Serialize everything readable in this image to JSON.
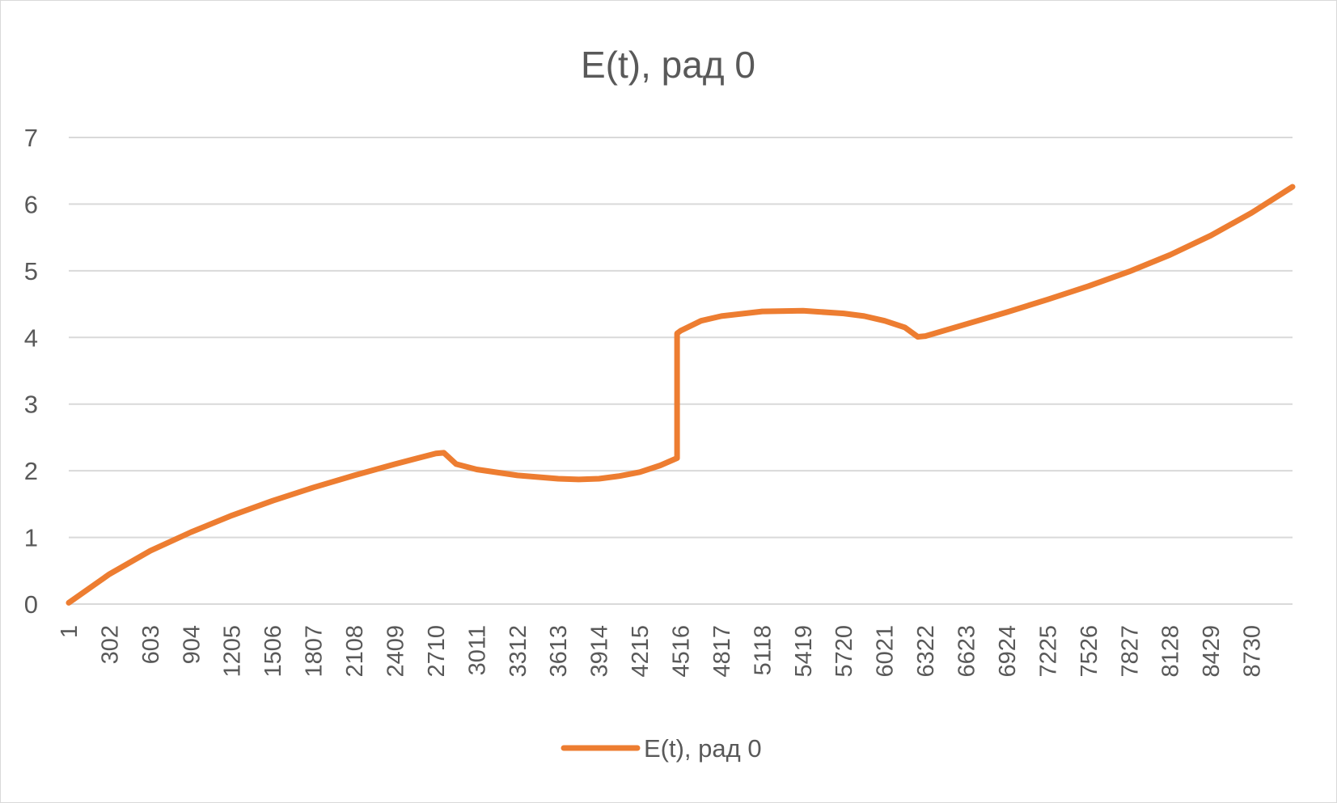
{
  "chart_data": {
    "type": "line",
    "title": "E(t), рад 0",
    "xlabel": "",
    "ylabel": "",
    "ylim": [
      0,
      7
    ],
    "yticks": [
      "0",
      "1",
      "2",
      "3",
      "4",
      "5",
      "6",
      "7"
    ],
    "xlim": [
      1,
      9031
    ],
    "xticks": [
      "1",
      "302",
      "603",
      "904",
      "1205",
      "1506",
      "1807",
      "2108",
      "2409",
      "2710",
      "3011",
      "3312",
      "3613",
      "3914",
      "4215",
      "4516",
      "4817",
      "5118",
      "5419",
      "5720",
      "6021",
      "6322",
      "6623",
      "6924",
      "7225",
      "7526",
      "7827",
      "8128",
      "8429",
      "8730"
    ],
    "grid": true,
    "legend_position": "bottom",
    "colors": {
      "line": "#ed7d31",
      "grid": "#d9d9d9",
      "text": "#595959"
    },
    "series": [
      {
        "name": "E(t), рад 0",
        "x": [
          1,
          302,
          603,
          904,
          1205,
          1506,
          1807,
          2108,
          2409,
          2710,
          2769,
          2860,
          3011,
          3312,
          3613,
          3764,
          3914,
          4065,
          4215,
          4366,
          4490,
          4490,
          4516,
          4667,
          4817,
          5118,
          5419,
          5720,
          5870,
          6021,
          6171,
          6266,
          6322,
          6623,
          6924,
          7225,
          7526,
          7827,
          8128,
          8429,
          8730,
          9031
        ],
        "y": [
          0.02,
          0.45,
          0.8,
          1.08,
          1.33,
          1.55,
          1.75,
          1.93,
          2.1,
          2.26,
          2.27,
          2.1,
          2.02,
          1.93,
          1.88,
          1.87,
          1.88,
          1.92,
          1.98,
          2.08,
          2.19,
          4.06,
          4.1,
          4.25,
          4.32,
          4.39,
          4.4,
          4.36,
          4.32,
          4.25,
          4.15,
          4.01,
          4.02,
          4.2,
          4.38,
          4.57,
          4.77,
          4.99,
          5.24,
          5.53,
          5.87,
          6.26
        ]
      }
    ]
  }
}
